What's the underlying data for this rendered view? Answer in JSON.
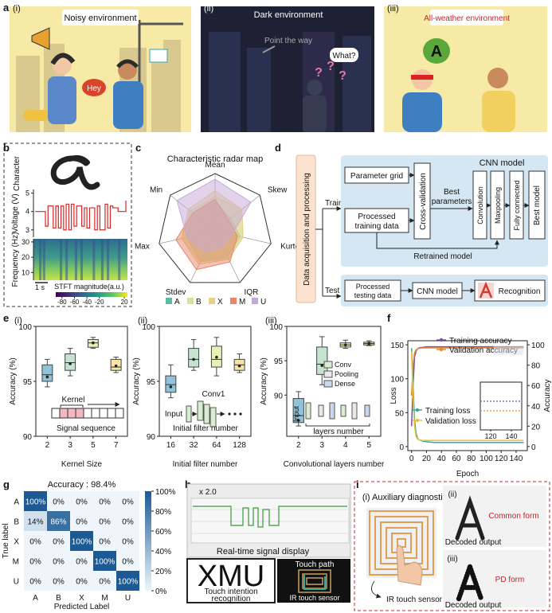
{
  "labels": [
    "a",
    "b",
    "c",
    "d",
    "e",
    "f",
    "g",
    "h",
    "i"
  ],
  "a": {
    "sub_labels": [
      "(i)",
      "(ii)",
      "(iii)"
    ],
    "noisy": "Noisy environment",
    "hey": "Hey",
    "dark": "Dark environment",
    "point": "Point the way",
    "what": "What?",
    "question": "?",
    "all_weather": "All-weather environment",
    "letter": "A"
  },
  "b": {
    "character_label": "Character",
    "voltage": {
      "ylabel": "Voltage (V)",
      "ylim": [
        2.6,
        5.2
      ],
      "yticks": [
        3,
        4,
        5
      ],
      "color": "#d62728",
      "values": [
        4.0,
        4.0,
        4.0,
        4.0,
        3.2,
        4.3,
        4.3,
        3.1,
        4.3,
        3.1,
        4.3,
        3.0,
        4.4,
        3.0,
        4.4,
        3.2,
        4.3,
        4.3,
        3.2,
        4.2,
        3.1,
        4.2,
        4.2,
        3.0,
        4.3,
        3.0,
        3.0,
        4.4,
        3.1,
        4.3,
        4.2,
        4.2,
        4.0,
        4.0,
        4.0,
        4.6
      ]
    },
    "spectrogram": {
      "ylabel": "Frequency (Hz)",
      "ylim": [
        5,
        32
      ],
      "yticks": [
        10,
        20,
        30
      ]
    },
    "scale_bar": "1 s",
    "colorbar": {
      "label": "STFT magnitude(a.u.)",
      "lim": [
        -90,
        25
      ],
      "ticks": [
        -80,
        -60,
        -40,
        -20,
        20
      ]
    }
  },
  "c": {
    "type": "radar",
    "title": "Characteristic radar map",
    "axes": [
      "Mean",
      "Skew",
      "Kurtosis",
      "IQR",
      "Stdev",
      "Max",
      "Min"
    ],
    "rlim": [
      0,
      1
    ],
    "series": [
      {
        "name": "A",
        "color": "#5fb8a8",
        "values": [
          0.5,
          0.35,
          0.45,
          0.5,
          0.6,
          0.5,
          0.5
        ]
      },
      {
        "name": "B",
        "color": "#d4e39a",
        "values": [
          0.6,
          0.6,
          0.5,
          0.55,
          0.6,
          0.6,
          0.55
        ]
      },
      {
        "name": "X",
        "color": "#e6cf86",
        "values": [
          0.7,
          0.6,
          0.5,
          0.55,
          0.65,
          0.6,
          0.6
        ]
      },
      {
        "name": "M",
        "color": "#e8866a",
        "values": [
          0.55,
          0.3,
          0.4,
          0.6,
          0.75,
          0.7,
          0.5
        ]
      },
      {
        "name": "U",
        "color": "#c5a8d8",
        "values": [
          0.9,
          0.8,
          0.3,
          0.3,
          0.4,
          0.5,
          0.85
        ]
      }
    ]
  },
  "d": {
    "data_acq": "Data acquisition and processing",
    "train": "Train",
    "test": "Test",
    "param_grid": "Parameter grid",
    "processed_training": [
      "Processed",
      "training data"
    ],
    "cross_val": "Cross-validation",
    "best_params": [
      "Best",
      "parameters"
    ],
    "cnn_title": "CNN model",
    "convolution": "Convolution",
    "maxpooling": "Maxpooling",
    "fully": "Fully connected",
    "best_model": "Best model",
    "retrained": "Retrained model",
    "processed_testing": [
      "Processed",
      "testing data"
    ],
    "cnn_box": "CNN model",
    "recognition": "Recognition"
  },
  "e": {
    "plots": [
      {
        "sub_label": "(i)",
        "ylabel": "Accuracy (%)",
        "xlabel": "Kernel Size",
        "categories": [
          "2",
          "3",
          "5",
          "7"
        ],
        "ylim": [
          90,
          100
        ],
        "yticks": [
          90,
          95,
          100
        ],
        "colors": [
          "#8ec3d9",
          "#c5e3d0",
          "#e8efb7",
          "#f7e3a6"
        ],
        "boxes": [
          {
            "min": 94.5,
            "q1": 95.0,
            "median": 95.6,
            "q3": 96.5,
            "max": 97.0,
            "mean": 95.4
          },
          {
            "min": 95.5,
            "q1": 96.0,
            "median": 96.7,
            "q3": 97.5,
            "max": 98.0,
            "mean": 96.6
          },
          {
            "min": 98.0,
            "q1": 98.1,
            "median": 98.5,
            "q3": 98.8,
            "max": 99.0,
            "mean": 98.5
          },
          {
            "min": 95.8,
            "q1": 96.0,
            "median": 96.3,
            "q3": 97.0,
            "max": 97.2,
            "mean": 96.4
          }
        ],
        "inset": [
          "Kernel",
          "Signal sequence"
        ]
      },
      {
        "sub_label": "(ii)",
        "ylabel": "Accuracy (%)",
        "xlabel": "Initial filter number",
        "categories": [
          "16",
          "32",
          "64",
          "128"
        ],
        "ylim": [
          90,
          100
        ],
        "yticks": [
          90,
          95,
          100
        ],
        "colors": [
          "#8ec3d9",
          "#c5e3d0",
          "#e8efb7",
          "#f7e3a6"
        ],
        "boxes": [
          {
            "min": 93.5,
            "q1": 94.0,
            "median": 94.7,
            "q3": 95.5,
            "max": 96.5,
            "mean": 94.5
          },
          {
            "min": 96.0,
            "q1": 96.3,
            "median": 97.0,
            "q3": 98.0,
            "max": 98.8,
            "mean": 97.0
          },
          {
            "min": 95.5,
            "q1": 96.3,
            "median": 97.0,
            "q3": 98.2,
            "max": 99.0,
            "mean": 97.2
          },
          {
            "min": 95.8,
            "q1": 96.0,
            "median": 96.5,
            "q3": 97.0,
            "max": 97.5,
            "mean": 96.4
          }
        ],
        "inset": [
          "Conv1",
          "Input",
          "Initial filter number"
        ]
      },
      {
        "sub_label": "(iii)",
        "ylabel": "Accuracy (%)",
        "xlabel": "Convolutional layers number",
        "categories": [
          "2",
          "3",
          "4",
          "5"
        ],
        "ylim": [
          84,
          100
        ],
        "yticks": [
          90,
          95,
          100
        ],
        "colors": [
          "#8ec3d9",
          "#c5e3d0",
          "#e8efb7",
          "#f7e3a6"
        ],
        "boxes": [
          {
            "min": 85.5,
            "q1": 86.0,
            "median": 87.0,
            "q3": 89.5,
            "max": 90.5,
            "mean": 86.3
          },
          {
            "min": 91.5,
            "q1": 93.0,
            "median": 94.5,
            "q3": 97.0,
            "max": 98.5,
            "mean": 94.3
          },
          {
            "min": 96.8,
            "q1": 97.0,
            "median": 97.3,
            "q3": 97.6,
            "max": 98.0,
            "mean": 97.3
          },
          {
            "min": 97.2,
            "q1": 97.3,
            "median": 97.5,
            "q3": 97.7,
            "max": 97.9,
            "mean": 97.5
          }
        ],
        "legend": [
          "Conv",
          "Pooling",
          "Dense"
        ],
        "inset": [
          "Input",
          "layers number"
        ]
      }
    ]
  },
  "f": {
    "type": "line",
    "xlabel": "Epoch",
    "ylabel": "Loss",
    "y2label": "Accuracy",
    "x": [
      0,
      2,
      4,
      6,
      8,
      10,
      15,
      20,
      30,
      40,
      50,
      60,
      70,
      80,
      90,
      100,
      110,
      120,
      130,
      140,
      150
    ],
    "xlim": [
      -5,
      155
    ],
    "xticks": [
      0,
      20,
      40,
      60,
      80,
      100,
      120,
      140
    ],
    "ylim": [
      -6,
      156
    ],
    "yticks": [
      0,
      50,
      100,
      150
    ],
    "y2lim": [
      -4,
      104
    ],
    "y2ticks": [
      0,
      20,
      40,
      60,
      80,
      100
    ],
    "series": [
      {
        "name": "Training accuracy",
        "color": "#7b4ea3",
        "axis": "y2",
        "values": [
          20,
          60,
          88,
          94,
          96,
          97,
          97.5,
          98,
          98,
          98,
          98,
          98,
          98,
          98,
          98,
          98,
          98,
          98,
          98,
          98,
          98
        ]
      },
      {
        "name": "Validation accuracy",
        "color": "#e8892b",
        "axis": "y2",
        "values": [
          50,
          80,
          92,
          95,
          96,
          96.5,
          97,
          97,
          97,
          97,
          97,
          97,
          97,
          97,
          97,
          97,
          97,
          97,
          97,
          97,
          97
        ]
      },
      {
        "name": "Training loss",
        "color": "#3aa59a",
        "axis": "y",
        "values": [
          145,
          90,
          40,
          20,
          12,
          10,
          8,
          7,
          6,
          6,
          6,
          6,
          6,
          6,
          6,
          6,
          6,
          6,
          6,
          6,
          6
        ]
      },
      {
        "name": "Validation loss",
        "color": "#e8c23a",
        "axis": "y",
        "values": [
          140,
          70,
          30,
          15,
          11,
          10,
          9,
          9,
          9,
          9,
          9,
          9,
          9,
          9,
          9,
          9,
          9,
          9,
          9,
          9,
          9
        ]
      }
    ],
    "inset": {
      "xlim": [
        110,
        150
      ],
      "xticks": [
        120,
        140
      ],
      "y2lim": [
        95,
        100
      ]
    }
  },
  "g": {
    "type": "heatmap",
    "title": "Accuracy : 98.4%",
    "labels": [
      "A",
      "B",
      "X",
      "M",
      "U"
    ],
    "ylabel": "True label",
    "xlabel": "Predicted Label",
    "values": [
      [
        100,
        0,
        0,
        0,
        0
      ],
      [
        14,
        86,
        0,
        0,
        0
      ],
      [
        0,
        0,
        100,
        0,
        0
      ],
      [
        0,
        0,
        0,
        100,
        0
      ],
      [
        0,
        0,
        0,
        0,
        100
      ]
    ],
    "value_labels": [
      [
        "100%",
        "0%",
        "0%",
        "0%",
        "0%"
      ],
      [
        "14%",
        "86%",
        "0%",
        "0%",
        "0%"
      ],
      [
        "0%",
        "0%",
        "100%",
        "0%",
        "0%"
      ],
      [
        "0%",
        "0%",
        "0%",
        "100%",
        "0%"
      ],
      [
        "0%",
        "0%",
        "0%",
        "0%",
        "100%"
      ]
    ],
    "colorbar_ticks": [
      {
        "value": 0,
        "label": "0%"
      },
      {
        "value": 20,
        "label": "20%"
      },
      {
        "value": 40,
        "label": "40%"
      },
      {
        "value": 60,
        "label": "60%"
      },
      {
        "value": 80,
        "label": "80%"
      },
      {
        "value": 100,
        "label": "100%"
      }
    ]
  },
  "h": {
    "zoom": "x 2.0",
    "realtime": "Real-time  signal display",
    "xmu": "XMU",
    "touch_intent": [
      "Touch intention",
      "recognition"
    ],
    "touch_path": "Touch path",
    "ir": "IR touch sensor"
  },
  "i": {
    "aux": "(i) Auxiliary diagnostic",
    "ir": "IR touch sensor",
    "sub2": "(ii)",
    "common": "Common form",
    "sub3": "(iii)",
    "pd": "PD form",
    "decoded": [
      "Decoded output",
      "Decoded output"
    ]
  }
}
